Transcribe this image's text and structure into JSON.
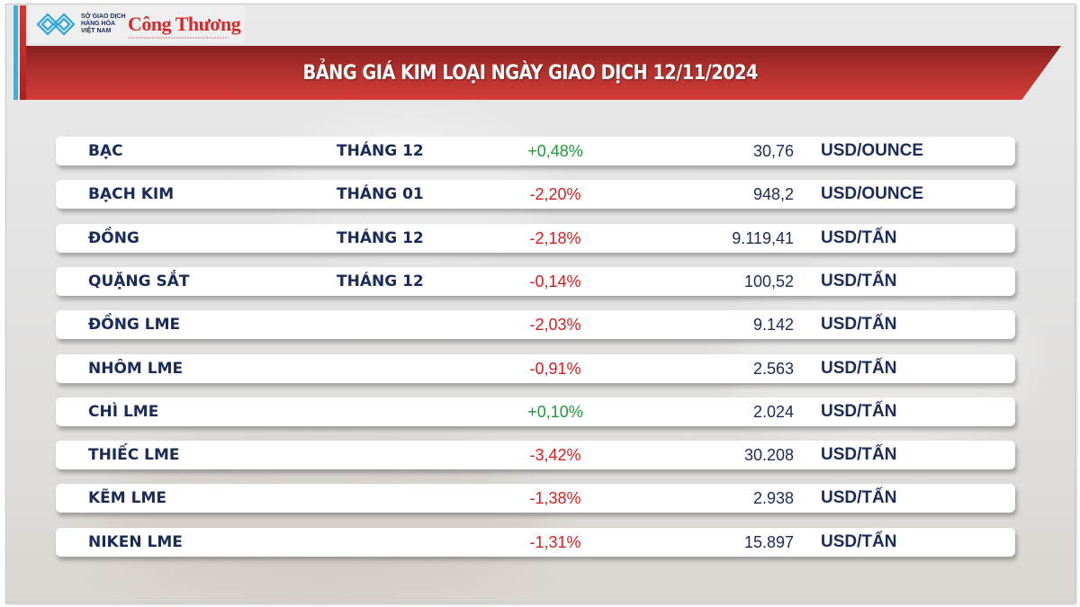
{
  "logo": {
    "org_line1": "SỞ GIAO DỊCH",
    "org_line2": "HÀNG HÓA",
    "org_line3": "VIỆT NAM",
    "brand": "Công Thương"
  },
  "banner": {
    "title": "BẢNG GIÁ KIM LOẠI NGÀY GIAO DỊCH 12/11/2024"
  },
  "colors": {
    "up": "#1f9a3a",
    "down": "#d11f1f",
    "text": "#1b2b58",
    "banner": "#b0302c",
    "accent_blue": "#2bb6e6"
  },
  "table": {
    "rows": [
      {
        "name": "BẠC",
        "term": "THÁNG 12",
        "change": "+0,48%",
        "direction": "up",
        "price": "30,76",
        "unit": "USD/OUNCE"
      },
      {
        "name": "BẠCH KIM",
        "term": "THÁNG 01",
        "change": "-2,20%",
        "direction": "down",
        "price": "948,2",
        "unit": "USD/OUNCE"
      },
      {
        "name": "ĐỒNG",
        "term": "THÁNG 12",
        "change": "-2,18%",
        "direction": "down",
        "price": "9.119,41",
        "unit": "USD/TẤN"
      },
      {
        "name": "QUẶNG SẮT",
        "term": "THÁNG 12",
        "change": "-0,14%",
        "direction": "down",
        "price": "100,52",
        "unit": "USD/TẤN"
      },
      {
        "name": "ĐỒNG LME",
        "term": "",
        "change": "-2,03%",
        "direction": "down",
        "price": "9.142",
        "unit": "USD/TẤN"
      },
      {
        "name": "NHÔM LME",
        "term": "",
        "change": "-0,91%",
        "direction": "down",
        "price": "2.563",
        "unit": "USD/TẤN"
      },
      {
        "name": "CHÌ LME",
        "term": "",
        "change": "+0,10%",
        "direction": "up",
        "price": "2.024",
        "unit": "USD/TẤN"
      },
      {
        "name": "THIẾC LME",
        "term": "",
        "change": "-3,42%",
        "direction": "down",
        "price": "30.208",
        "unit": "USD/TẤN"
      },
      {
        "name": "KẼM LME",
        "term": "",
        "change": "-1,38%",
        "direction": "down",
        "price": "2.938",
        "unit": "USD/TẤN"
      },
      {
        "name": "NIKEN LME",
        "term": "",
        "change": "-1,31%",
        "direction": "down",
        "price": "15.897",
        "unit": "USD/TẤN"
      }
    ]
  }
}
